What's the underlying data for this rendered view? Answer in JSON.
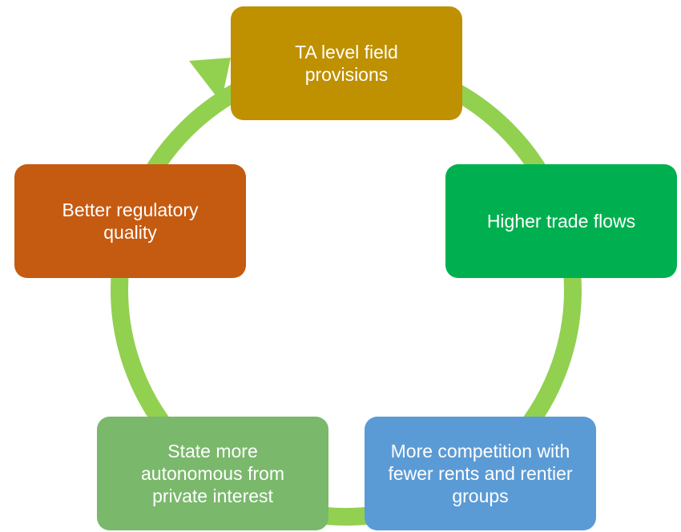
{
  "nodes": [
    {
      "label": "TA level field provisions"
    },
    {
      "label": "Higher trade flows"
    },
    {
      "label": "More competition with fewer rents and rentier groups"
    },
    {
      "label": "State more autonomous from private interest"
    },
    {
      "label": "Better regulatory quality"
    }
  ]
}
